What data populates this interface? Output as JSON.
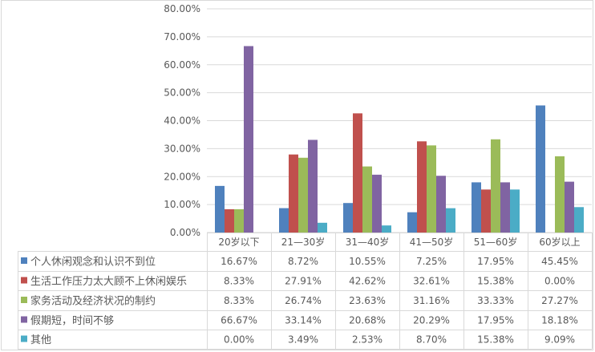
{
  "chart_data": {
    "type": "bar",
    "categories": [
      "20岁以下",
      "21—30岁",
      "31—40岁",
      "41—50岁",
      "51—60岁",
      "60岁以上"
    ],
    "series": [
      {
        "name": "个人休闲观念和认识不到位",
        "color": "#4f81bd",
        "values": [
          16.67,
          8.72,
          10.55,
          7.25,
          17.95,
          45.45
        ],
        "labels": [
          "16.67%",
          "8.72%",
          "10.55%",
          "7.25%",
          "17.95%",
          "45.45%"
        ]
      },
      {
        "name": "生活工作压力太大顾不上休闲娱乐",
        "color": "#c0504d",
        "values": [
          8.33,
          27.91,
          42.62,
          32.61,
          15.38,
          0.0
        ],
        "labels": [
          "8.33%",
          "27.91%",
          "42.62%",
          "32.61%",
          "15.38%",
          "0.00%"
        ]
      },
      {
        "name": "家务活动及经济状况的制约",
        "color": "#9bbb59",
        "values": [
          8.33,
          26.74,
          23.63,
          31.16,
          33.33,
          27.27
        ],
        "labels": [
          "8.33%",
          "26.74%",
          "23.63%",
          "31.16%",
          "33.33%",
          "27.27%"
        ]
      },
      {
        "name": "假期短，时间不够",
        "color": "#8064a2",
        "values": [
          66.67,
          33.14,
          20.68,
          20.29,
          17.95,
          18.18
        ],
        "labels": [
          "66.67%",
          "33.14%",
          "20.68%",
          "20.29%",
          "17.95%",
          "18.18%"
        ]
      },
      {
        "name": "其他",
        "color": "#4bacc6",
        "values": [
          0.0,
          3.49,
          2.53,
          8.7,
          15.38,
          9.09
        ],
        "labels": [
          "0.00%",
          "3.49%",
          "2.53%",
          "8.70%",
          "15.38%",
          "9.09%"
        ]
      }
    ],
    "ylim": [
      0,
      80
    ],
    "yticks": [
      "0.00%",
      "10.00%",
      "20.00%",
      "30.00%",
      "40.00%",
      "50.00%",
      "60.00%",
      "70.00%",
      "80.00%"
    ],
    "grid": true,
    "legend": "data-table"
  }
}
